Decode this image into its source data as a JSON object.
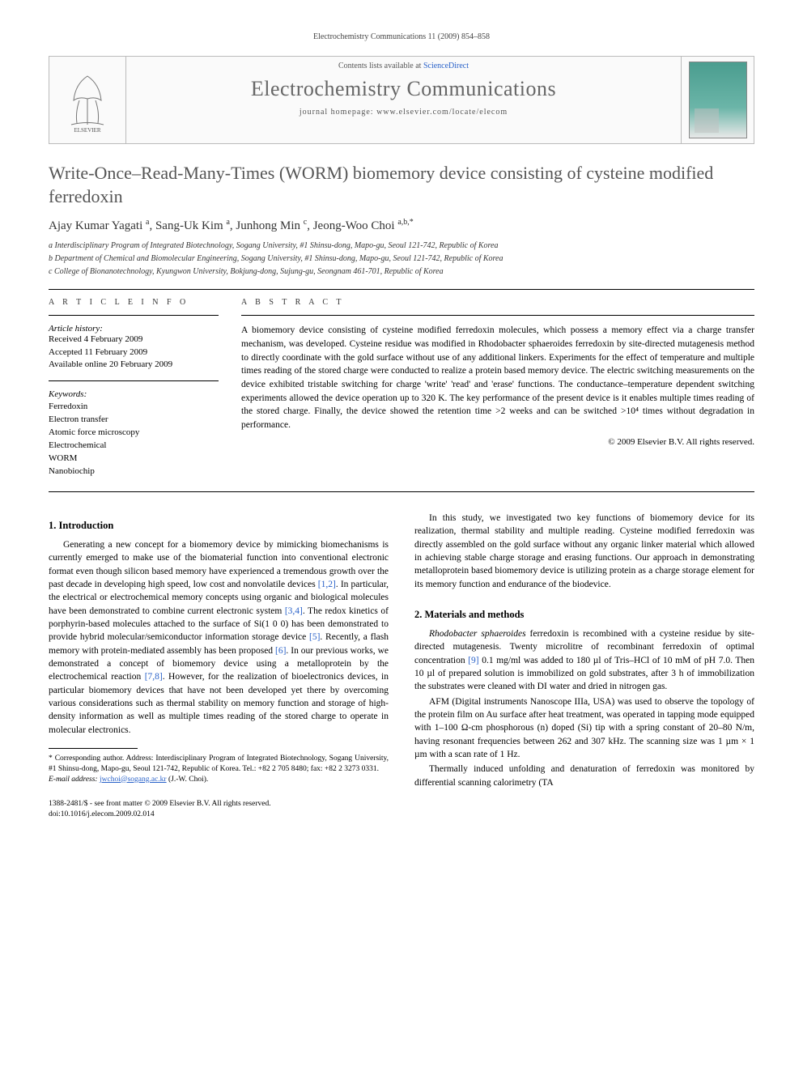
{
  "top_citation": "Electrochemistry Communications 11 (2009) 854–858",
  "masthead": {
    "availability_prefix": "Contents lists available at ",
    "availability_link": "ScienceDirect",
    "journal_name": "Electrochemistry Communications",
    "homepage_prefix": "journal homepage: ",
    "homepage_url": "www.elsevier.com/locate/elecom",
    "publisher_label": "ELSEVIER"
  },
  "title": "Write-Once–Read-Many-Times (WORM) biomemory device consisting of cysteine modified ferredoxin",
  "authors_html": "Ajay Kumar Yagati <sup>a</sup>, Sang-Uk Kim <sup>a</sup>, Junhong Min <sup>c</sup>, Jeong-Woo Choi <sup>a,b,*</sup>",
  "affiliations": [
    "a Interdisciplinary Program of Integrated Biotechnology, Sogang University, #1 Shinsu-dong, Mapo-gu, Seoul 121-742, Republic of Korea",
    "b Department of Chemical and Biomolecular Engineering, Sogang University, #1 Shinsu-dong, Mapo-gu, Seoul 121-742, Republic of Korea",
    "c College of Bionanotechnology, Kyungwon University, Bokjung-dong, Sujung-gu, Seongnam 461-701, Republic of Korea"
  ],
  "info": {
    "section_label": "A R T I C L E   I N F O",
    "history_label": "Article history:",
    "history": [
      "Received 4 February 2009",
      "Accepted 11 February 2009",
      "Available online 20 February 2009"
    ],
    "keywords_label": "Keywords:",
    "keywords": [
      "Ferredoxin",
      "Electron transfer",
      "Atomic force microscopy",
      "Electrochemical",
      "WORM",
      "Nanobiochip"
    ]
  },
  "abstract": {
    "section_label": "A B S T R A C T",
    "text": "A biomemory device consisting of cysteine modified ferredoxin molecules, which possess a memory effect via a charge transfer mechanism, was developed. Cysteine residue was modified in Rhodobacter sphaeroides ferredoxin by site-directed mutagenesis method to directly coordinate with the gold surface without use of any additional linkers. Experiments for the effect of temperature and multiple times reading of the stored charge were conducted to realize a protein based memory device. The electric switching measurements on the device exhibited tristable switching for charge 'write' 'read' and 'erase' functions. The conductance–temperature dependent switching experiments allowed the device operation up to 320 K. The key performance of the present device is it enables multiple times reading of the stored charge. Finally, the device showed the retention time >2 weeks and can be switched >10⁴ times without degradation in performance.",
    "copyright": "© 2009 Elsevier B.V. All rights reserved."
  },
  "body": {
    "left": {
      "heading": "1. Introduction",
      "p1": "Generating a new concept for a biomemory device by mimicking biomechanisms is currently emerged to make use of the biomaterial function into conventional electronic format even though silicon based memory have experienced a tremendous growth over the past decade in developing high speed, low cost and nonvolatile devices [1,2]. In particular, the electrical or electrochemical memory concepts using organic and biological molecules have been demonstrated to combine current electronic system [3,4]. The redox kinetics of porphyrin-based molecules attached to the surface of Si(1 0 0) has been demonstrated to provide hybrid molecular/semiconductor information storage device [5]. Recently, a flash memory with protein-mediated assembly has been proposed [6]. In our previous works, we demonstrated a concept of biomemory device using a metalloprotein by the electrochemical reaction [7,8]. However, for the realization of bioelectronics devices, in particular biomemory devices that have not been developed yet there by overcoming various considerations such as thermal stability on memory function and storage of high-density information as well as multiple times reading of the stored charge to operate in molecular electronics."
    },
    "right": {
      "p1": "In this study, we investigated two key functions of biomemory device for its realization, thermal stability and multiple reading. Cysteine modified ferredoxin was directly assembled on the gold surface without any organic linker material which allowed in achieving stable charge storage and erasing functions. Our approach in demonstrating metalloprotein based biomemory device is utilizing protein as a charge storage element for its memory function and endurance of the biodevice.",
      "heading": "2. Materials and methods",
      "p2": "Rhodobacter sphaeroides ferredoxin is recombined with a cysteine residue by site-directed mutagenesis. Twenty microlitre of recombinant ferredoxin of optimal concentration [9] 0.1 mg/ml was added to 180 µl of Tris–HCl of 10 mM of pH 7.0. Then 10 µl of prepared solution is immobilized on gold substrates, after 3 h of immobilization the substrates were cleaned with DI water and dried in nitrogen gas.",
      "p3": "AFM (Digital instruments Nanoscope IIIa, USA) was used to observe the topology of the protein film on Au surface after heat treatment, was operated in tapping mode equipped with 1–100 Ω-cm phosphorous (n) doped (Si) tip with a spring constant of 20–80 N/m, having resonant frequencies between 262 and 307 kHz. The scanning size was 1 µm × 1 µm with a scan rate of 1 Hz.",
      "p4": "Thermally induced unfolding and denaturation of ferredoxin was monitored by differential scanning calorimetry (TA"
    }
  },
  "footnote": {
    "corresponding": "* Corresponding author. Address: Interdisciplinary Program of Integrated Biotechnology, Sogang University, #1 Shinsu-dong, Mapo-gu, Seoul 121-742, Republic of Korea. Tel.: +82 2 705 8480; fax: +82 2 3273 0331.",
    "email_label": "E-mail address:",
    "email": "jwchoi@sogang.ac.kr",
    "email_suffix": "(J.-W. Choi)."
  },
  "footer": {
    "issn_line": "1388-2481/$ - see front matter © 2009 Elsevier B.V. All rights reserved.",
    "doi_line": "doi:10.1016/j.elecom.2009.02.014"
  },
  "colors": {
    "link": "#2a62c9",
    "text": "#000000",
    "muted": "#555555",
    "journal_title": "#666666",
    "border": "#bbbbbb"
  }
}
